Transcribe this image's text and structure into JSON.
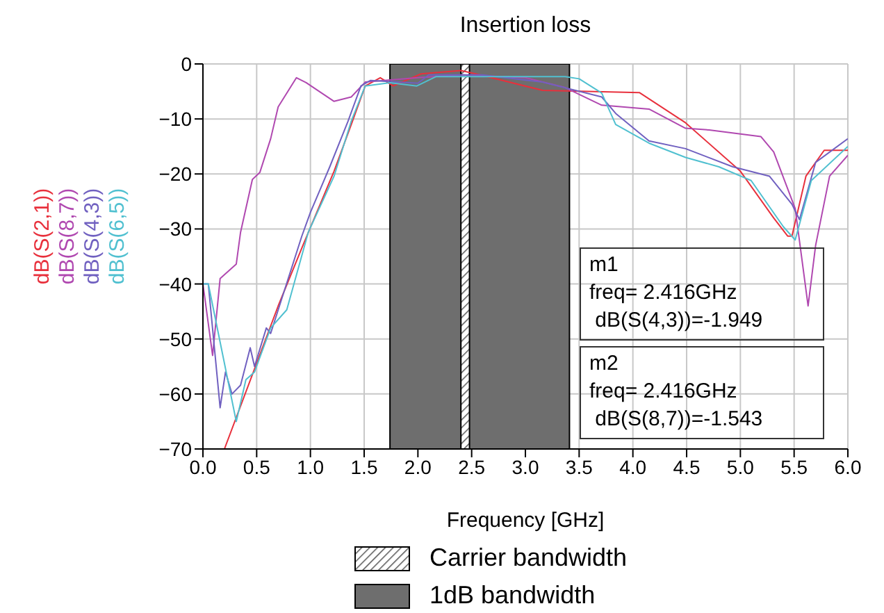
{
  "chart_data": {
    "type": "line",
    "title": "Insertion loss",
    "xlabel": "Frequency  [GHz]",
    "xlim": [
      0,
      6
    ],
    "xticks": [
      {
        "value": 0,
        "label": "0.0"
      },
      {
        "value": 0.5,
        "label": "0.5"
      },
      {
        "value": 1,
        "label": "1.0"
      },
      {
        "value": 1.5,
        "label": "1.5"
      },
      {
        "value": 2,
        "label": "2.0"
      },
      {
        "value": 2.5,
        "label": "2.5"
      },
      {
        "value": 3,
        "label": "3.0"
      },
      {
        "value": 3.5,
        "label": "3.5"
      },
      {
        "value": 4,
        "label": "4.0"
      },
      {
        "value": 4.5,
        "label": "4.5"
      },
      {
        "value": 5,
        "label": "5.0"
      },
      {
        "value": 5.5,
        "label": "5.5"
      },
      {
        "value": 6,
        "label": "6.0"
      }
    ],
    "ylim": [
      -70,
      0
    ],
    "yticks": [
      -70,
      -60,
      -50,
      -40,
      -30,
      -20,
      -10,
      0
    ],
    "grid": true,
    "legend": "left",
    "marker": "none",
    "line_style": "solid",
    "series": [
      {
        "name": "dB(S(2,1))",
        "color": "#e8303c",
        "x": [
          0.2,
          0.7,
          0.93,
          1.22,
          1.38,
          1.51,
          1.65,
          1.77,
          2.03,
          2.4,
          2.58,
          3.16,
          4.06,
          4.49,
          5.0,
          5.31,
          5.44,
          5.48,
          5.61,
          5.78,
          6.0
        ],
        "values": [
          -70,
          -44,
          -33,
          -19.5,
          -11,
          -4,
          -2.5,
          -4,
          -1.8,
          -1.2,
          -2,
          -4.8,
          -5.2,
          -10.7,
          -19.5,
          -28,
          -31.3,
          -31.3,
          -20.4,
          -15.7,
          -15.7
        ]
      },
      {
        "name": "dB(S(8,7))",
        "color": "#b048b0",
        "x": [
          0,
          0.09,
          0.16,
          0.31,
          0.35,
          0.46,
          0.53,
          0.63,
          0.7,
          0.78,
          0.87,
          0.96,
          1.22,
          1.38,
          1.51,
          2.0,
          2.416,
          3.0,
          3.37,
          3.71,
          4.15,
          4.49,
          4.71,
          5.19,
          5.31,
          5.51,
          5.63,
          5.7,
          5.83,
          6.0
        ],
        "values": [
          -40,
          -53,
          -39,
          -36.4,
          -30.6,
          -21,
          -19.7,
          -13.6,
          -7.8,
          -5.3,
          -2.5,
          -3.4,
          -6.8,
          -6,
          -3.3,
          -2.5,
          -2,
          -2.5,
          -4.3,
          -7.5,
          -8.2,
          -11.7,
          -12,
          -13.2,
          -16,
          -26.3,
          -44,
          -33,
          -20.4,
          -16.6
        ]
      },
      {
        "name": "dB(S(4,3))",
        "color": "#7060c0",
        "x": [
          0,
          0.05,
          0.16,
          0.21,
          0.27,
          0.35,
          0.44,
          0.48,
          0.59,
          0.63,
          0.72,
          0.92,
          1.0,
          1.18,
          1.35,
          1.47,
          1.56,
          2.0,
          2.1,
          2.416,
          2.6,
          3.16,
          3.71,
          3.84,
          4.15,
          4.49,
          4.93,
          5.27,
          5.48,
          5.55,
          5.7,
          6.0
        ],
        "values": [
          -40,
          -40,
          -62.5,
          -56,
          -60,
          -58.4,
          -51.6,
          -55,
          -48,
          -49,
          -43.5,
          -31.3,
          -27,
          -18.7,
          -10.4,
          -4,
          -3,
          -3.5,
          -2,
          -2,
          -2,
          -3.3,
          -6,
          -9,
          -14,
          -15.4,
          -18.7,
          -20.4,
          -25.5,
          -28.3,
          -17.9,
          -13.6
        ]
      },
      {
        "name": "dB(S(6,5))",
        "color": "#50c0d0",
        "x": [
          0,
          0.05,
          0.31,
          0.4,
          0.48,
          0.63,
          0.78,
          0.98,
          1.22,
          1.38,
          1.51,
          1.74,
          1.99,
          2.17,
          3.37,
          3.5,
          3.71,
          3.84,
          4.15,
          4.49,
          4.8,
          5.1,
          5.4,
          5.51,
          5.66,
          6.0
        ],
        "values": [
          -40,
          -40,
          -65,
          -57.4,
          -56,
          -48,
          -44.7,
          -30.6,
          -20.4,
          -10.4,
          -4,
          -3.4,
          -4,
          -2.3,
          -2.3,
          -2.7,
          -5.3,
          -11,
          -14.4,
          -17,
          -18.7,
          -21.2,
          -29.6,
          -32,
          -21.2,
          -15
        ]
      }
    ],
    "bands": [
      {
        "axis": "x",
        "from": 1.74,
        "to": 3.41,
        "label": "1dB bandwidth",
        "color": "#6e6e6e"
      },
      {
        "axis": "x",
        "from": 2.4,
        "to": 2.48,
        "label": "Carrier bandwidth"
      }
    ],
    "annotations": [
      "m1\nfreq= 2.416GHz\n dB(S(4,3))=-1.949",
      "m2\nfreq= 2.416GHz\n dB(S(8,7))=-1.543"
    ]
  }
}
